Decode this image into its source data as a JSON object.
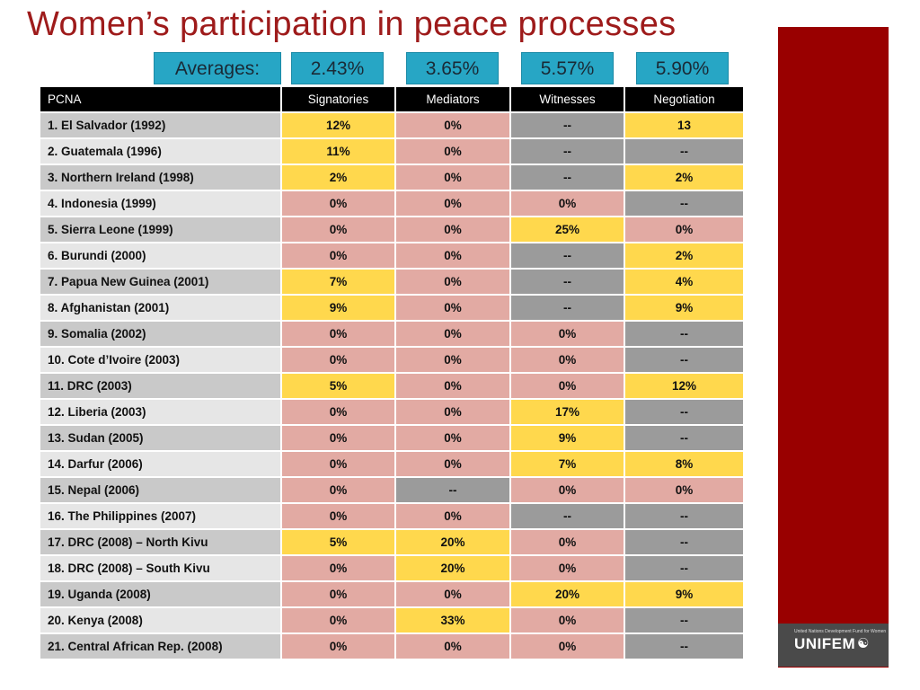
{
  "title": "Women’s participation in peace processes",
  "averages": {
    "label": "Averages:",
    "values": [
      "2.43%",
      "3.65%",
      "5.57%",
      "5.90%"
    ]
  },
  "table": {
    "headers": [
      "PCNA",
      "Signatories",
      "Mediators",
      "Witnesses",
      "Negotiation"
    ],
    "rows": [
      {
        "name": "1. El  Salvador (1992)",
        "cells": [
          "12%",
          "0%",
          "--",
          "13"
        ],
        "colors": [
          "y",
          "p",
          "g",
          "y"
        ]
      },
      {
        "name": "2. Guatemala (1996)",
        "cells": [
          "11%",
          "0%",
          "--",
          "--"
        ],
        "colors": [
          "y",
          "p",
          "g",
          "g"
        ]
      },
      {
        "name": "3. Northern Ireland (1998)",
        "cells": [
          "2%",
          "0%",
          "--",
          "2%"
        ],
        "colors": [
          "y",
          "p",
          "g",
          "y"
        ]
      },
      {
        "name": "4. Indonesia (1999)",
        "cells": [
          "0%",
          "0%",
          "0%",
          "--"
        ],
        "colors": [
          "p",
          "p",
          "p",
          "g"
        ]
      },
      {
        "name": "5. Sierra Leone (1999)",
        "cells": [
          "0%",
          "0%",
          "25%",
          "0%"
        ],
        "colors": [
          "p",
          "p",
          "y",
          "p"
        ]
      },
      {
        "name": "6. Burundi (2000)",
        "cells": [
          "0%",
          "0%",
          "--",
          "2%"
        ],
        "colors": [
          "p",
          "p",
          "g",
          "y"
        ]
      },
      {
        "name": "7. Papua New Guinea (2001)",
        "cells": [
          "7%",
          "0%",
          "--",
          "4%"
        ],
        "colors": [
          "y",
          "p",
          "g",
          "y"
        ]
      },
      {
        "name": "8. Afghanistan (2001)",
        "cells": [
          "9%",
          "0%",
          "--",
          "9%"
        ],
        "colors": [
          "y",
          "p",
          "g",
          "y"
        ]
      },
      {
        "name": "9. Somalia (2002)",
        "cells": [
          "0%",
          "0%",
          "0%",
          "--"
        ],
        "colors": [
          "p",
          "p",
          "p",
          "g"
        ]
      },
      {
        "name": "10. Cote d’Ivoire (2003)",
        "cells": [
          "0%",
          "0%",
          "0%",
          "--"
        ],
        "colors": [
          "p",
          "p",
          "p",
          "g"
        ]
      },
      {
        "name": "11. DRC (2003)",
        "cells": [
          "5%",
          "0%",
          "0%",
          "12%"
        ],
        "colors": [
          "y",
          "p",
          "p",
          "y"
        ]
      },
      {
        "name": "12. Liberia (2003)",
        "cells": [
          "0%",
          "0%",
          "17%",
          "--"
        ],
        "colors": [
          "p",
          "p",
          "y",
          "g"
        ]
      },
      {
        "name": "13. Sudan (2005)",
        "cells": [
          "0%",
          "0%",
          "9%",
          "--"
        ],
        "colors": [
          "p",
          "p",
          "y",
          "g"
        ]
      },
      {
        "name": "14. Darfur (2006)",
        "cells": [
          "0%",
          "0%",
          "7%",
          "8%"
        ],
        "colors": [
          "p",
          "p",
          "y",
          "y"
        ]
      },
      {
        "name": "15. Nepal (2006)",
        "cells": [
          "0%",
          "--",
          "0%",
          "0%"
        ],
        "colors": [
          "p",
          "g",
          "p",
          "p"
        ]
      },
      {
        "name": "16. The Philippines (2007)",
        "cells": [
          "0%",
          "0%",
          "--",
          "--"
        ],
        "colors": [
          "p",
          "p",
          "g",
          "g"
        ]
      },
      {
        "name": "17. DRC (2008) – North Kivu",
        "cells": [
          "5%",
          "20%",
          "0%",
          "--"
        ],
        "colors": [
          "y",
          "y",
          "p",
          "g"
        ]
      },
      {
        "name": "18. DRC (2008) – South Kivu",
        "cells": [
          "0%",
          "20%",
          "0%",
          "--"
        ],
        "colors": [
          "p",
          "y",
          "p",
          "g"
        ]
      },
      {
        "name": "19. Uganda (2008)",
        "cells": [
          "0%",
          "0%",
          "20%",
          "9%"
        ],
        "colors": [
          "p",
          "p",
          "y",
          "y"
        ]
      },
      {
        "name": "20. Kenya (2008)",
        "cells": [
          "0%",
          "33%",
          "0%",
          "--"
        ],
        "colors": [
          "p",
          "y",
          "p",
          "g"
        ]
      },
      {
        "name": "21. Central African Rep. (2008)",
        "cells": [
          "0%",
          "0%",
          "0%",
          "--"
        ],
        "colors": [
          "p",
          "p",
          "p",
          "g"
        ]
      }
    ]
  },
  "colors": {
    "title": "#9e1b1b",
    "accent_sidebar": "#990000",
    "average_box": "#27a6c5",
    "highlight_yellow": "#ffd84d",
    "highlight_pink": "#e2aaa3",
    "highlight_gray": "#9b9b9b"
  },
  "logo": {
    "tagline": "United Nations Development Fund for Women",
    "word": "UNIFEM",
    "icon": "un-emblem-icon"
  }
}
